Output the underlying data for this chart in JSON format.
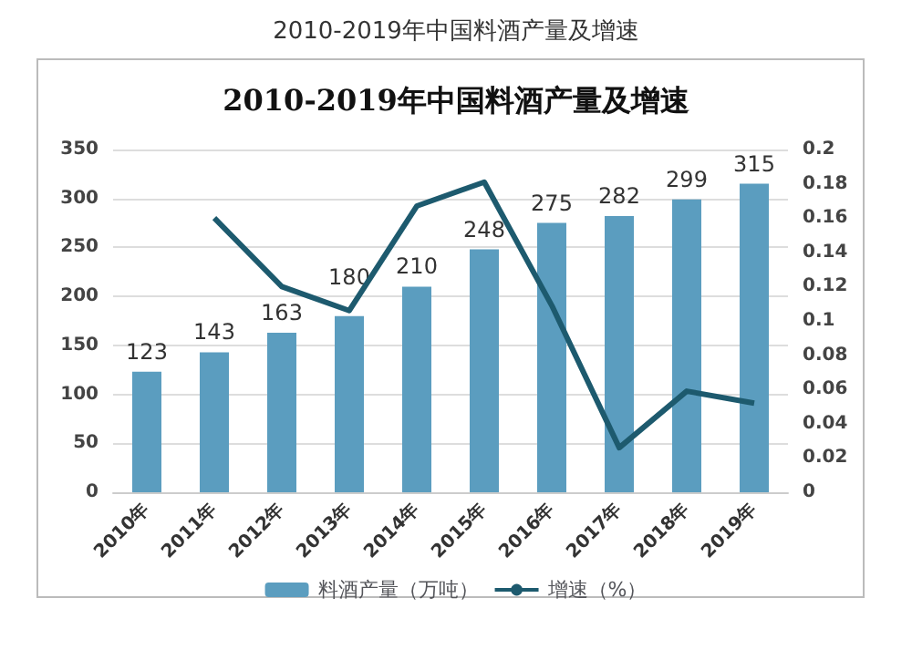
{
  "chart_data": {
    "type": "bar",
    "subtitle": "2010-2019年中国料酒产量及增速",
    "title": "2010-2019年中国料酒产量及增速",
    "categories": [
      "2010年",
      "2011年",
      "2012年",
      "2013年",
      "2014年",
      "2015年",
      "2016年",
      "2017年",
      "2018年",
      "2019年"
    ],
    "series": [
      {
        "name": "料酒产量（万吨）",
        "color": "#5b9dbf",
        "values": [
          123,
          143,
          163,
          180,
          210,
          248,
          275,
          282,
          299,
          315
        ],
        "data_labels": true
      },
      {
        "name": "增速（%）",
        "type": "line",
        "axis": "y2",
        "color": "#1d5a6e",
        "values": [
          null,
          0.16,
          0.12,
          0.106,
          0.167,
          0.181,
          0.109,
          0.026,
          0.059,
          0.052
        ]
      }
    ],
    "ylim": [
      0,
      350
    ],
    "yticks": [
      0,
      50,
      100,
      150,
      200,
      250,
      300,
      350
    ],
    "y2lim": [
      0,
      0.2
    ],
    "y2ticks": [
      0,
      0.02,
      0.04,
      0.06,
      0.08,
      0.1,
      0.12,
      0.14,
      0.16,
      0.18,
      0.2
    ],
    "grid": "y",
    "legend": "bottom",
    "marker": "none"
  }
}
